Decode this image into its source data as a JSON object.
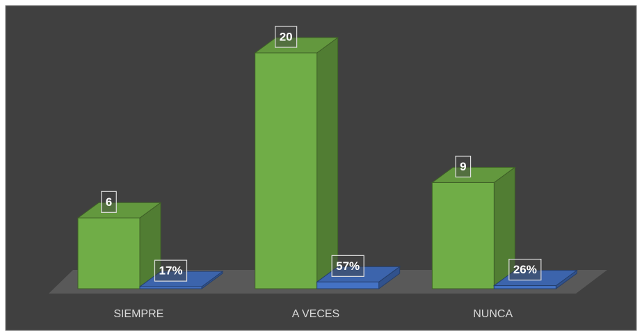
{
  "chart_data": {
    "type": "bar3d",
    "categories": [
      "SIEMPRE",
      "A VECES",
      "NUNCA"
    ],
    "series": [
      {
        "color": "#70ad47",
        "values": [
          6,
          20,
          9
        ]
      },
      {
        "color": "#4472c4",
        "values": [
          17,
          57,
          26
        ],
        "value_labels": [
          "17%",
          "57%",
          "26%"
        ],
        "axis": "y2"
      }
    ],
    "ylim": [
      0,
      20
    ],
    "y2lim": [
      0,
      2000
    ]
  }
}
